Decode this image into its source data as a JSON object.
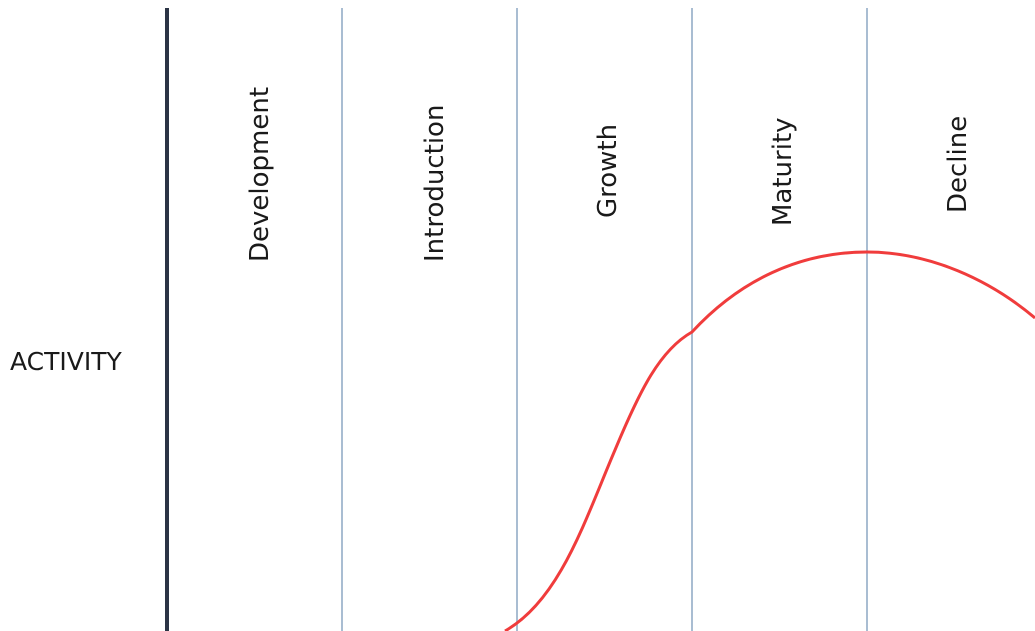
{
  "y_axis_label": "ACTIVITY",
  "stages": [
    {
      "label": "Development"
    },
    {
      "label": "Introduction"
    },
    {
      "label": "Growth"
    },
    {
      "label": "Maturity"
    },
    {
      "label": "Decline"
    }
  ],
  "colors": {
    "axis": "#2b3445",
    "divider": "#a9bdd2",
    "curve": "#f03c3c",
    "text": "#1a1a1a"
  }
}
